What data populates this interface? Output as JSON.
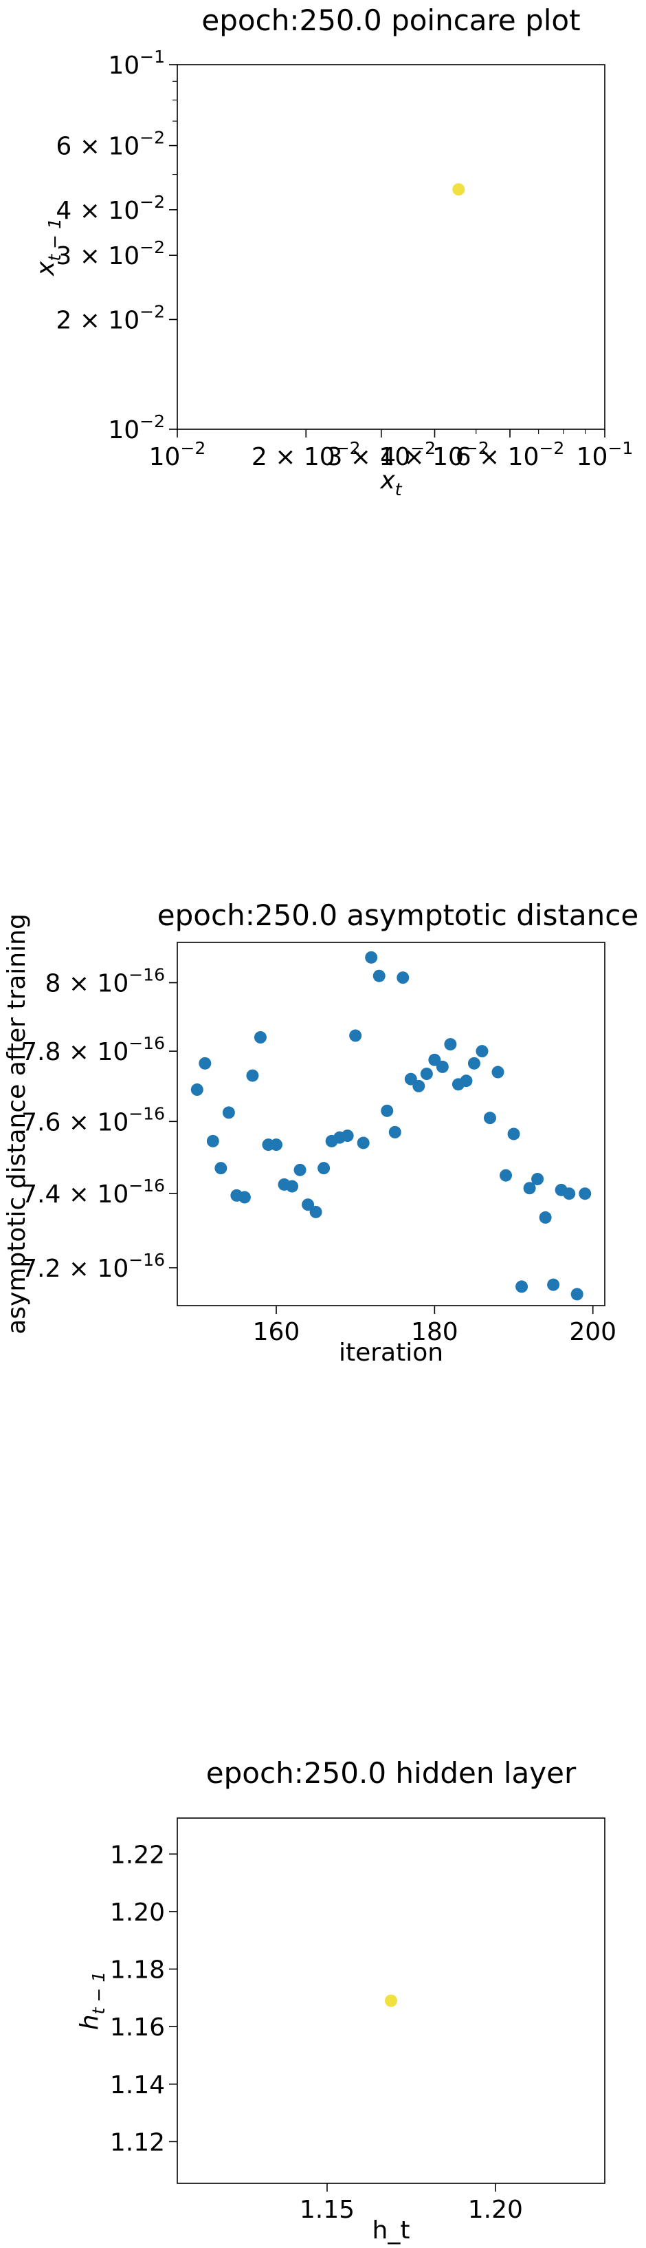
{
  "chart_data": [
    {
      "type": "scatter",
      "title": "epoch:250.0 poincare plot",
      "xlabel_base": "x",
      "xlabel_sub": "t",
      "ylabel_base": "x",
      "ylabel_sub": "t − 1",
      "xscale": "log",
      "yscale": "log",
      "xlim": [
        0.01,
        0.1
      ],
      "ylim": [
        0.01,
        0.1
      ],
      "xticks": [
        {
          "value": 0.01,
          "base": "10",
          "exp": "−2"
        },
        {
          "value": 0.02,
          "base": "2 × 10",
          "exp": "−2"
        },
        {
          "value": 0.03,
          "base": "3 × 10",
          "exp": "−2"
        },
        {
          "value": 0.04,
          "base": "4 × 10",
          "exp": "−2"
        },
        {
          "value": 0.06,
          "base": "6 × 10",
          "exp": "−2"
        },
        {
          "value": 0.1,
          "base": "10",
          "exp": "−1"
        }
      ],
      "yticks": [
        {
          "value": 0.01,
          "base": "10",
          "exp": "−2"
        },
        {
          "value": 0.02,
          "base": "2 × 10",
          "exp": "−2"
        },
        {
          "value": 0.03,
          "base": "3 × 10",
          "exp": "−2"
        },
        {
          "value": 0.04,
          "base": "4 × 10",
          "exp": "−2"
        },
        {
          "value": 0.06,
          "base": "6 × 10",
          "exp": "−2"
        },
        {
          "value": 0.1,
          "base": "10",
          "exp": "−1"
        }
      ],
      "points": [
        {
          "x": 0.0455,
          "y": 0.0455
        }
      ],
      "color": "#f0e040",
      "grid": false
    },
    {
      "type": "scatter",
      "title": "epoch:250.0 asymptotic distance",
      "xlabel": "iteration",
      "ylabel": "asymptotic distance after training",
      "xscale": "linear",
      "yscale": "log",
      "xlim": [
        147.5,
        201.5
      ],
      "ylim": [
        7.1e-16,
        8.12e-16
      ],
      "xticks": [
        {
          "value": 160,
          "label": "160"
        },
        {
          "value": 180,
          "label": "180"
        },
        {
          "value": 200,
          "label": "200"
        }
      ],
      "yticks": [
        {
          "value": 7.2e-16,
          "base": "7.2 × 10",
          "exp": "−16"
        },
        {
          "value": 7.4e-16,
          "base": "7.4 × 10",
          "exp": "−16"
        },
        {
          "value": 7.6e-16,
          "base": "7.6 × 10",
          "exp": "−16"
        },
        {
          "value": 7.8e-16,
          "base": "7.8 × 10",
          "exp": "−16"
        },
        {
          "value": 8e-16,
          "base": "8 × 10",
          "exp": "−16"
        }
      ],
      "color": "#1f77b4",
      "grid": false,
      "points": [
        {
          "x": 150,
          "y": 7.69e-16
        },
        {
          "x": 151,
          "y": 7.765e-16
        },
        {
          "x": 152,
          "y": 7.545e-16
        },
        {
          "x": 153,
          "y": 7.47e-16
        },
        {
          "x": 154,
          "y": 7.625e-16
        },
        {
          "x": 155,
          "y": 7.395e-16
        },
        {
          "x": 156,
          "y": 7.39e-16
        },
        {
          "x": 157,
          "y": 7.73e-16
        },
        {
          "x": 158,
          "y": 7.84e-16
        },
        {
          "x": 159,
          "y": 7.535e-16
        },
        {
          "x": 160,
          "y": 7.535e-16
        },
        {
          "x": 161,
          "y": 7.425e-16
        },
        {
          "x": 162,
          "y": 7.42e-16
        },
        {
          "x": 163,
          "y": 7.465e-16
        },
        {
          "x": 164,
          "y": 7.37e-16
        },
        {
          "x": 165,
          "y": 7.35e-16
        },
        {
          "x": 166,
          "y": 7.47e-16
        },
        {
          "x": 167,
          "y": 7.545e-16
        },
        {
          "x": 168,
          "y": 7.555e-16
        },
        {
          "x": 169,
          "y": 7.56e-16
        },
        {
          "x": 170,
          "y": 7.845e-16
        },
        {
          "x": 171,
          "y": 7.54e-16
        },
        {
          "x": 172,
          "y": 8.075e-16
        },
        {
          "x": 173,
          "y": 8.02e-16
        },
        {
          "x": 174,
          "y": 7.63e-16
        },
        {
          "x": 175,
          "y": 7.57e-16
        },
        {
          "x": 176,
          "y": 8.015e-16
        },
        {
          "x": 177,
          "y": 7.72e-16
        },
        {
          "x": 178,
          "y": 7.7e-16
        },
        {
          "x": 179,
          "y": 7.735e-16
        },
        {
          "x": 180,
          "y": 7.775e-16
        },
        {
          "x": 181,
          "y": 7.755e-16
        },
        {
          "x": 182,
          "y": 7.82e-16
        },
        {
          "x": 183,
          "y": 7.705e-16
        },
        {
          "x": 184,
          "y": 7.715e-16
        },
        {
          "x": 185,
          "y": 7.765e-16
        },
        {
          "x": 186,
          "y": 7.8e-16
        },
        {
          "x": 187,
          "y": 7.61e-16
        },
        {
          "x": 188,
          "y": 7.74e-16
        },
        {
          "x": 189,
          "y": 7.45e-16
        },
        {
          "x": 190,
          "y": 7.565e-16
        },
        {
          "x": 191,
          "y": 7.15e-16
        },
        {
          "x": 192,
          "y": 7.415e-16
        },
        {
          "x": 193,
          "y": 7.44e-16
        },
        {
          "x": 194,
          "y": 7.335e-16
        },
        {
          "x": 195,
          "y": 7.155e-16
        },
        {
          "x": 196,
          "y": 7.41e-16
        },
        {
          "x": 197,
          "y": 7.4e-16
        },
        {
          "x": 198,
          "y": 7.13e-16
        },
        {
          "x": 199,
          "y": 7.4e-16
        }
      ]
    },
    {
      "type": "scatter",
      "title": "epoch:250.0 hidden layer",
      "xlabel": "h_t",
      "ylabel_base": "h",
      "ylabel_sub": "t − 1",
      "xscale": "linear",
      "yscale": "linear",
      "xlim": [
        1.1055,
        1.2325
      ],
      "ylim": [
        1.1055,
        1.2325
      ],
      "xticks": [
        {
          "value": 1.15,
          "label": "1.15"
        },
        {
          "value": 1.2,
          "label": "1.20"
        }
      ],
      "yticks": [
        {
          "value": 1.12,
          "label": "1.12"
        },
        {
          "value": 1.14,
          "label": "1.14"
        },
        {
          "value": 1.16,
          "label": "1.16"
        },
        {
          "value": 1.18,
          "label": "1.18"
        },
        {
          "value": 1.2,
          "label": "1.20"
        },
        {
          "value": 1.22,
          "label": "1.22"
        }
      ],
      "points": [
        {
          "x": 1.169,
          "y": 1.169
        }
      ],
      "color": "#f0e040",
      "grid": false
    }
  ]
}
